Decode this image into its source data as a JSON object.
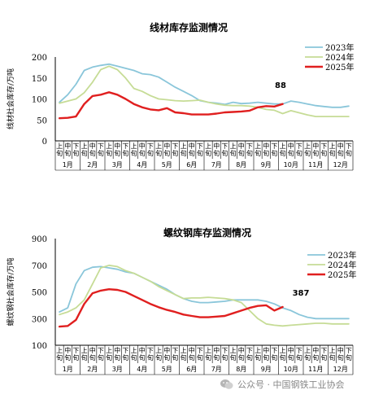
{
  "watermark": {
    "text": "公众号 · 中国钢铁工业协会"
  },
  "chart_data": [
    {
      "type": "line",
      "title": "线材库存监测情况",
      "ylabel": "线材社会库存/万吨",
      "ylim": [
        0,
        200
      ],
      "yticks": [
        0,
        50,
        100,
        150,
        200
      ],
      "months": [
        "1月",
        "2月",
        "3月",
        "4月",
        "5月",
        "6月",
        "7月",
        "8月",
        "9月",
        "10月",
        "11月",
        "12月"
      ],
      "periods": [
        "上旬",
        "中旬",
        "下旬"
      ],
      "legend": "top-right",
      "series": [
        {
          "name": "2023年",
          "color": "#8ac6da",
          "values": [
            92,
            110,
            135,
            168,
            176,
            180,
            183,
            178,
            173,
            168,
            160,
            158,
            152,
            140,
            128,
            118,
            108,
            96,
            92,
            90,
            87,
            92,
            89,
            90,
            92,
            90,
            88,
            88,
            95,
            92,
            88,
            84,
            82,
            80,
            80,
            83
          ]
        },
        {
          "name": "2024年",
          "color": "#c6dc96",
          "values": [
            90,
            95,
            100,
            115,
            140,
            170,
            178,
            170,
            150,
            125,
            118,
            108,
            100,
            98,
            96,
            95,
            96,
            97,
            92,
            88,
            85,
            84,
            84,
            83,
            80,
            75,
            73,
            65,
            72,
            67,
            62,
            58,
            58,
            58,
            58,
            58
          ]
        },
        {
          "name": "2025年",
          "color": "#e01f1f",
          "values": [
            54,
            55,
            58,
            88,
            107,
            110,
            116,
            110,
            100,
            88,
            80,
            75,
            73,
            78,
            68,
            66,
            63,
            63,
            63,
            65,
            68,
            69,
            70,
            72,
            80,
            83,
            82,
            88
          ]
        }
      ],
      "annotation": {
        "label": "88"
      }
    },
    {
      "type": "line",
      "title": "螺纹钢库存监测情况",
      "ylabel": "螺纹钢社会库存/万吨",
      "ylim": [
        100,
        900
      ],
      "yticks": [
        100,
        300,
        500,
        700,
        900
      ],
      "months": [
        "1月",
        "2月",
        "3月",
        "4月",
        "5月",
        "6月",
        "7月",
        "8月",
        "9月",
        "10月",
        "11月",
        "12月"
      ],
      "periods": [
        "上旬",
        "中旬",
        "下旬"
      ],
      "legend": "top-right",
      "series": [
        {
          "name": "2023年",
          "color": "#8ac6da",
          "values": [
            350,
            380,
            560,
            660,
            685,
            690,
            680,
            670,
            650,
            640,
            610,
            580,
            550,
            520,
            480,
            450,
            430,
            420,
            420,
            425,
            430,
            440,
            440,
            440,
            440,
            430,
            410,
            380,
            360,
            330,
            310,
            300,
            300,
            300,
            300,
            300
          ]
        },
        {
          "name": "2024年",
          "color": "#c6dc96",
          "values": [
            330,
            350,
            380,
            440,
            560,
            680,
            700,
            690,
            660,
            640,
            610,
            580,
            540,
            510,
            480,
            450,
            455,
            455,
            460,
            455,
            450,
            440,
            420,
            360,
            300,
            260,
            250,
            245,
            250,
            255,
            260,
            265,
            265,
            260,
            260,
            260
          ]
        },
        {
          "name": "2025年",
          "color": "#e01f1f",
          "values": [
            240,
            245,
            290,
            410,
            490,
            510,
            520,
            515,
            500,
            470,
            440,
            410,
            385,
            365,
            350,
            330,
            320,
            310,
            310,
            315,
            320,
            340,
            360,
            380,
            395,
            400,
            360,
            387
          ]
        }
      ],
      "annotation": {
        "label": "387"
      }
    }
  ]
}
